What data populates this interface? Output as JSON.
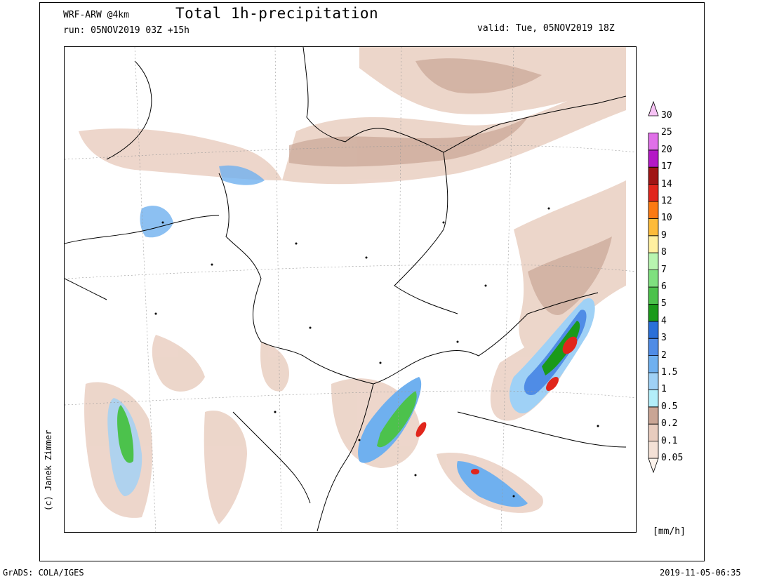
{
  "header": {
    "model": "WRF-ARW @4km",
    "run": "run: 05NOV2019 03Z +15h",
    "title": "Total 1h-precipitation",
    "valid": "valid: Tue, 05NOV2019 18Z"
  },
  "credit": "(c) Janek Zimmer",
  "footer": {
    "software": "GrADS: COLA/IGES",
    "timestamp": "2019-11-05-06:35"
  },
  "legend": {
    "units": "[mm/h]",
    "levels": [
      {
        "label": "0.05",
        "color": "#fdf3ec"
      },
      {
        "label": "0.1",
        "color": "#f4e1d6"
      },
      {
        "label": "0.2",
        "color": "#e8ccbe"
      },
      {
        "label": "0.5",
        "color": "#c9a595"
      },
      {
        "label": "1",
        "color": "#b3eefa"
      },
      {
        "label": "1.5",
        "color": "#9fd1f6"
      },
      {
        "label": "2",
        "color": "#6fb0ef"
      },
      {
        "label": "3",
        "color": "#4f8ce6"
      },
      {
        "label": "4",
        "color": "#2a6fd8"
      },
      {
        "label": "5",
        "color": "#1a9a1a"
      },
      {
        "label": "6",
        "color": "#4cc24c"
      },
      {
        "label": "7",
        "color": "#7fe07f"
      },
      {
        "label": "8",
        "color": "#b8f5b0"
      },
      {
        "label": "9",
        "color": "#fff0a0"
      },
      {
        "label": "10",
        "color": "#fdbb3a"
      },
      {
        "label": "12",
        "color": "#fb7a12"
      },
      {
        "label": "14",
        "color": "#e1261c"
      },
      {
        "label": "17",
        "color": "#a01414"
      },
      {
        "label": "20",
        "color": "#b418c6"
      },
      {
        "label": "25",
        "color": "#e070e8"
      },
      {
        "label": "30",
        "color": "#f6c2f4"
      }
    ]
  }
}
